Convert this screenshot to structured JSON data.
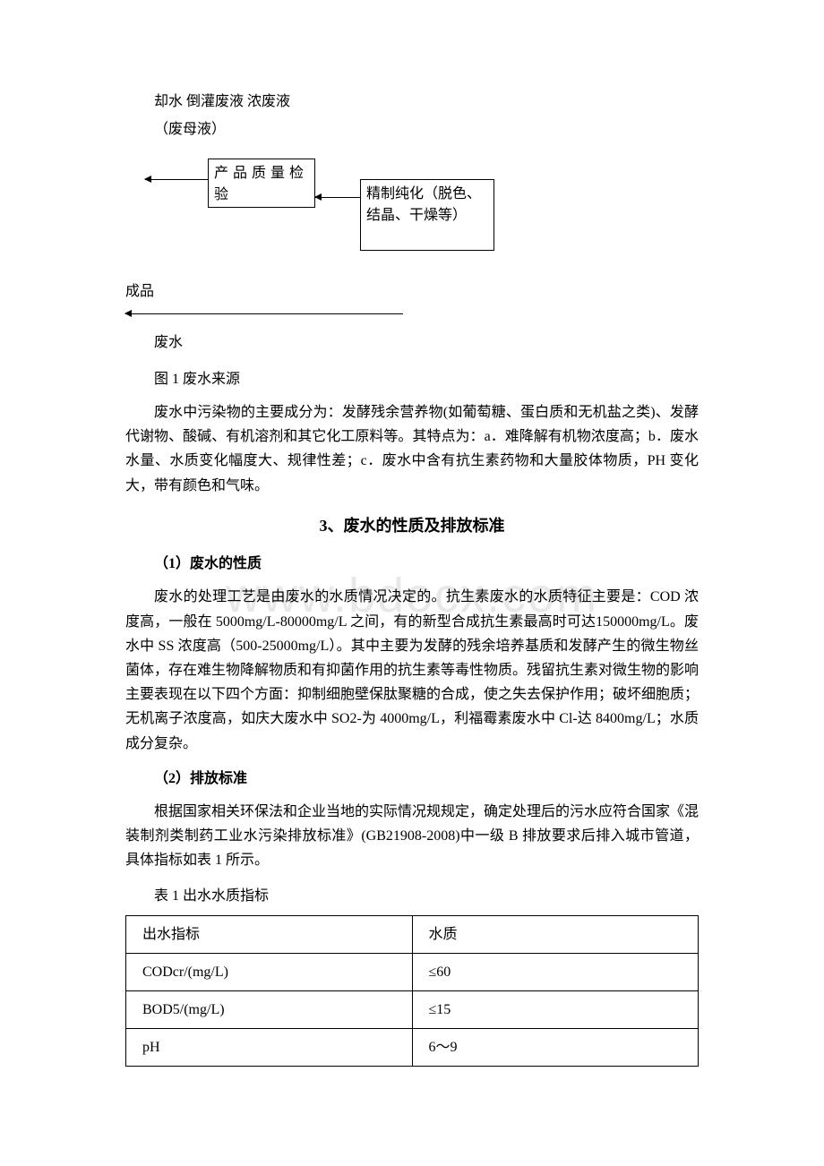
{
  "watermark": "www.bdocx.com",
  "intro_lines": {
    "line1": "却水 倒灌废液 浓废液",
    "line2": "（废母液）"
  },
  "flowchart": {
    "box1": "产品质量检验",
    "box2": "精制纯化（脱色、结晶、干燥等）"
  },
  "label_chengpin": "成品",
  "label_feishui": "废水",
  "figure_caption": "图 1 废水来源",
  "paragraph1": "废水中污染物的主要成分为：发酵残余营养物(如葡萄糖、蛋白质和无机盐之类)、发酵代谢物、酸碱、有机溶剂和其它化工原料等。其特点为：a．难降解有机物浓度高；b．废水水量、水质变化幅度大、规律性差；c．废水中含有抗生素药物和大量胶体物质，PH 变化大，带有颜色和气味。",
  "section3_title": "3、废水的性质及排放标准",
  "sub1_title": "（1）废水的性质",
  "paragraph_sub1": "废水的处理工艺是由废水的水质情况决定的。抗生素废水的水质特征主要是：COD 浓度高，一般在 5000mg/L-80000mg/L 之间，有的新型合成抗生素最高时可达150000mg/L。废水中 SS 浓度高（500-25000mg/L）。其中主要为发酵的残余培养基质和发酵产生的微生物丝菌体，存在难生物降解物质和有抑菌作用的抗生素等毒性物质。残留抗生素对微生物的影响主要表现在以下四个方面：抑制细胞壁保肽聚糖的合成，使之失去保护作用；破坏细胞质；无机离子浓度高，如庆大废水中 SO2-为 4000mg/L，利福霉素废水中 Cl-达 8400mg/L；水质成分复杂。",
  "sub2_title": "（2）排放标准",
  "paragraph_sub2": "根据国家相关环保法和企业当地的实际情况规规定，确定处理后的污水应符合国家《混装制剂类制药工业水污染排放标准》(GB21908-2008)中一级 B 排放要求后排入城市管道，具体指标如表 1 所示。",
  "table_caption": "表 1 出水水质指标",
  "table": {
    "header": {
      "c1": "出水指标",
      "c2": "水质"
    },
    "rows": [
      {
        "c1": "CODcr/(mg/L)",
        "c2": "≤60"
      },
      {
        "c1": "BOD5/(mg/L)",
        "c2": "≤15"
      },
      {
        "c1": "pH",
        "c2": "6～9"
      }
    ]
  },
  "colors": {
    "text": "#000000",
    "background": "#ffffff",
    "watermark": "#e8e8e8"
  }
}
